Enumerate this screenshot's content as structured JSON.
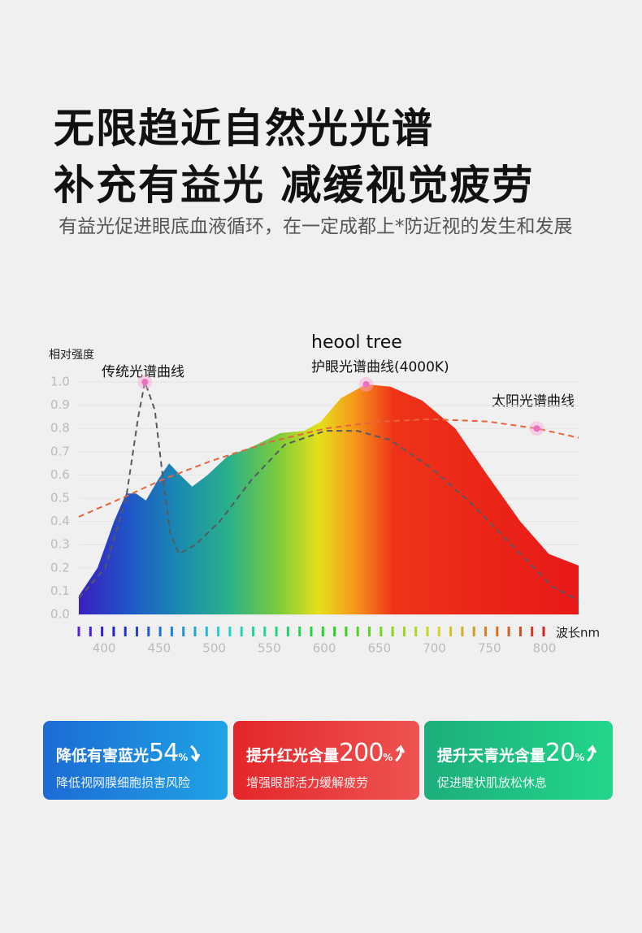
{
  "header": {
    "title_lines": [
      "无限趋近自然光光谱",
      "补充有益光 减缓视觉疲劳"
    ],
    "subtitle": "有益光促进眼底血液循环，在一定成都上*防近视的发生和发展"
  },
  "chart_data": {
    "type": "line",
    "annotation": "heool tree",
    "ylabel": "相对强度",
    "xlabel": "波长nm",
    "xlim": [
      377,
      831
    ],
    "xticks": [
      400,
      450,
      500,
      550,
      600,
      650,
      700,
      750,
      800
    ],
    "ylim": [
      0,
      1
    ],
    "yticks": [
      {
        "value": 0,
        "label": "0.0"
      },
      0.1,
      0.2,
      0.3,
      0.4,
      0.5,
      0.6,
      0.7,
      0.8,
      0.9,
      {
        "value": 1,
        "label": "1.0"
      }
    ],
    "grid": true,
    "series": [
      {
        "name": "传统光谱曲线",
        "color": "#555a60",
        "x": [
          377,
          401,
          420,
          431,
          437,
          446,
          453,
          460,
          468,
          483,
          505,
          534,
          564,
          601,
          630,
          660,
          697,
          733,
          770,
          807,
          831
        ],
        "values": [
          0.07,
          0.2,
          0.5,
          0.85,
          1.0,
          0.88,
          0.6,
          0.35,
          0.26,
          0.3,
          0.4,
          0.58,
          0.73,
          0.79,
          0.79,
          0.75,
          0.63,
          0.48,
          0.3,
          0.12,
          0.06
        ]
      },
      {
        "name": "护眼光谱曲线(4000K)",
        "color": "#e8201c",
        "x": [
          377,
          394,
          409,
          420,
          429,
          438,
          449,
          459,
          469,
          480,
          494,
          512,
          534,
          560,
          582,
          597,
          615,
          638,
          660,
          689,
          719,
          748,
          778,
          804,
          831
        ],
        "values": [
          0.08,
          0.2,
          0.4,
          0.52,
          0.52,
          0.49,
          0.58,
          0.65,
          0.6,
          0.55,
          0.6,
          0.68,
          0.72,
          0.78,
          0.79,
          0.83,
          0.93,
          0.99,
          0.98,
          0.92,
          0.8,
          0.6,
          0.4,
          0.26,
          0.21
        ]
      },
      {
        "name": "太阳光谱曲线",
        "color": "#e8643a",
        "x": [
          377,
          416,
          453,
          497,
          549,
          601,
          652,
          697,
          748,
          793,
          831
        ],
        "values": [
          0.42,
          0.5,
          0.58,
          0.66,
          0.74,
          0.8,
          0.83,
          0.84,
          0.83,
          0.8,
          0.76
        ]
      }
    ]
  },
  "cards": [
    {
      "title": "降低有害蓝光",
      "number": "54",
      "unit": "%",
      "desc": "降低视网膜细胞损害风险"
    },
    {
      "title": "提升红光含量",
      "number": "200",
      "unit": "%",
      "desc": "增强眼部活力缓解疲劳"
    },
    {
      "title": "提升天青光含量",
      "number": "20",
      "unit": "%",
      "desc": "促进睫状肌放松休息"
    }
  ]
}
